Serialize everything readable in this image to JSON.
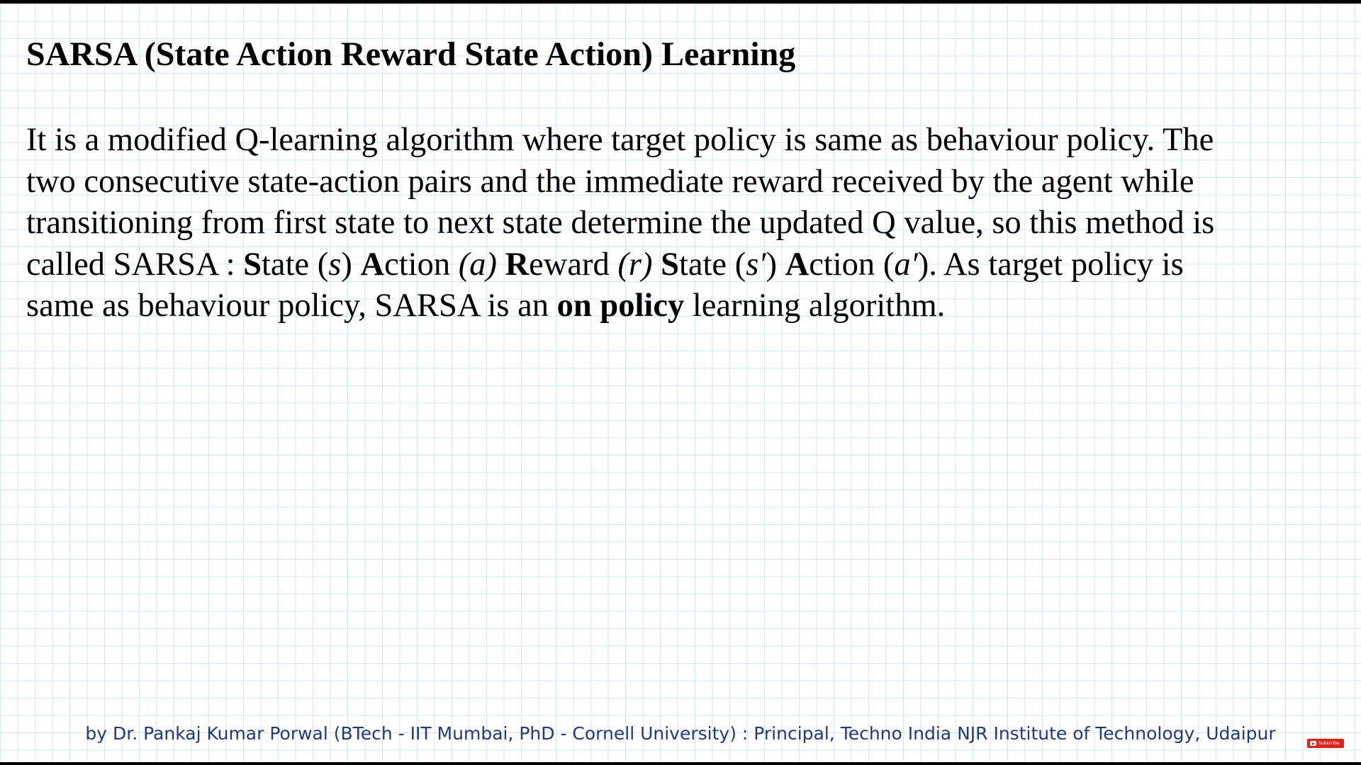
{
  "slide": {
    "title": "SARSA (State Action Reward State Action) Learning",
    "body": {
      "line1": "It is a modified Q-learning algorithm where target policy is same as behaviour policy. The",
      "line2": "two consecutive state-action pairs and the immediate reward received by the agent while",
      "line3": "transitioning from first state to next state determine the updated Q value, so this method is",
      "line4": {
        "prefix": "called SARSA : ",
        "s1_initial": "S",
        "s1_rest": "tate ",
        "s1_open": "(",
        "s1_sym": "s",
        "s1_close": ") ",
        "a1_initial": "A",
        "a1_rest": "ction ",
        "a1_sym": "(a)",
        "a1_space": " ",
        "r_initial": "R",
        "r_rest": "eward ",
        "r_sym": "(r)",
        "r_space": " ",
        "s2_initial": "S",
        "s2_rest": "tate ",
        "s2_open": "(",
        "s2_sym": "s′",
        "s2_close": ") ",
        "a2_initial": "A",
        "a2_rest": "ction ",
        "a2_open": "(",
        "a2_sym": "a′",
        "a2_close": ")",
        "suffix": ". As target policy is"
      },
      "line5": {
        "prefix": "same as behaviour policy, SARSA is an ",
        "emphasis": "on policy",
        "suffix": " learning algorithm."
      }
    }
  },
  "footer": {
    "credit": "by Dr. Pankaj Kumar Porwal (BTech - IIT Mumbai, PhD - Cornell University)  :  Principal, Techno India NJR Institute of Technology, Udaipur"
  },
  "subscribe_badge": {
    "label": "Subscribe",
    "icon": "youtube-play-icon",
    "color": "#e62117"
  },
  "colors": {
    "grid": "#cfe6f3",
    "footer_text": "#1f3a7a",
    "text": "#000000"
  }
}
